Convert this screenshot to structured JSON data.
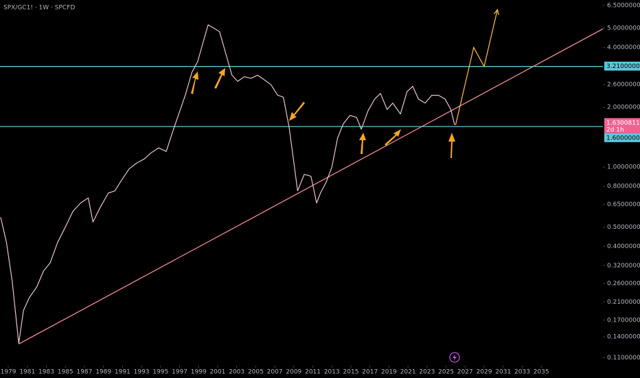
{
  "chart_data": {
    "type": "line",
    "title": "SPX/GC1! · 1W · SPCFD",
    "log_scale": true,
    "xlim": [
      1978.13,
      2041.48
    ],
    "ylim": [
      0.102,
      6.93
    ],
    "xticks": [
      1979,
      1981,
      1983,
      1985,
      1987,
      1989,
      1991,
      1993,
      1995,
      1997,
      1999,
      2001,
      2003,
      2005,
      2007,
      2009,
      2011,
      2013,
      2015,
      2017,
      2019,
      2021,
      2023,
      2025,
      2027,
      2029,
      2031,
      2033,
      2035
    ],
    "yticks": [
      {
        "value": 6.5,
        "label": "6.50000000"
      },
      {
        "value": 5.0,
        "label": "5.00000000"
      },
      {
        "value": 4.0,
        "label": "4.00000000"
      },
      {
        "value": 2.6,
        "label": "2.60000000"
      },
      {
        "value": 2.0,
        "label": "2.00000000"
      },
      {
        "value": 1.0,
        "label": "1.00000000"
      },
      {
        "value": 0.8,
        "label": "0.80000000"
      },
      {
        "value": 0.65,
        "label": "0.65000000"
      },
      {
        "value": 0.5,
        "label": "0.50000000"
      },
      {
        "value": 0.4,
        "label": "0.40000000"
      },
      {
        "value": 0.32,
        "label": "0.32000000"
      },
      {
        "value": 0.26,
        "label": "0.26000000"
      },
      {
        "value": 0.21,
        "label": "0.21000000"
      },
      {
        "value": 0.17,
        "label": "0.17000000"
      },
      {
        "value": 0.14,
        "label": "0.14000000"
      },
      {
        "value": 0.11,
        "label": "0.11000000"
      }
    ],
    "series": [
      {
        "name": "SPX/GC1!",
        "color": "#e9c6d2",
        "x": [
          1978.2,
          1978.8,
          1979.4,
          1980.1,
          1980.6,
          1981.2,
          1982.0,
          1982.7,
          1983.4,
          1984.2,
          1985.0,
          1985.8,
          1986.6,
          1987.4,
          1987.9,
          1988.6,
          1989.5,
          1990.2,
          1990.9,
          1991.7,
          1992.5,
          1993.3,
          1994.0,
          1994.8,
          1995.6,
          1996.3,
          1997.0,
          1997.6,
          1998.3,
          1998.9,
          1999.5,
          2000.0,
          2000.6,
          2001.2,
          2001.8,
          2002.5,
          2003.1,
          2003.8,
          2004.5,
          2005.2,
          2005.9,
          2006.6,
          2007.3,
          2007.9,
          2008.5,
          2008.9,
          2009.4,
          2010.1,
          2010.8,
          2011.4,
          2011.8,
          2012.4,
          2013.0,
          2013.6,
          2014.2,
          2014.9,
          2015.6,
          2016.1,
          2016.8,
          2017.5,
          2018.1,
          2018.8,
          2019.4,
          2020.2,
          2020.9,
          2021.5,
          2022.1,
          2022.8,
          2023.5,
          2024.2,
          2024.9,
          2025.5,
          2025.9
        ],
        "values": [
          0.56,
          0.42,
          0.27,
          0.13,
          0.19,
          0.22,
          0.25,
          0.3,
          0.33,
          0.42,
          0.5,
          0.6,
          0.66,
          0.7,
          0.53,
          0.62,
          0.74,
          0.76,
          0.86,
          0.98,
          1.05,
          1.1,
          1.18,
          1.25,
          1.2,
          1.52,
          1.9,
          2.3,
          3.0,
          3.4,
          4.3,
          5.2,
          5.0,
          4.8,
          3.8,
          2.9,
          2.7,
          2.85,
          2.8,
          2.9,
          2.75,
          2.6,
          2.3,
          2.25,
          1.6,
          1.15,
          0.76,
          0.92,
          0.9,
          0.66,
          0.74,
          0.84,
          1.0,
          1.4,
          1.65,
          1.82,
          1.78,
          1.55,
          1.92,
          2.2,
          2.35,
          1.95,
          2.1,
          1.85,
          2.4,
          2.55,
          2.2,
          2.1,
          2.3,
          2.3,
          2.2,
          1.95,
          1.63
        ]
      }
    ],
    "last_price": 1.63008116,
    "countdown": "2d 1h",
    "levels": [
      {
        "value": 3.21,
        "label": "3.21000000",
        "color": "#5fc6da"
      },
      {
        "value": 1.6,
        "label": "1.60000000",
        "color": "#5fc6da"
      }
    ],
    "trendline": {
      "color": "#f08a96",
      "x": [
        1980.1,
        2041.48
      ],
      "values": [
        0.129,
        4.96
      ]
    },
    "projection": {
      "color": "#f5b54a",
      "x": [
        2026.0,
        2027.9,
        2029.0,
        2030.4
      ],
      "values": [
        1.63,
        4.0,
        3.21,
        6.2
      ]
    }
  }
}
